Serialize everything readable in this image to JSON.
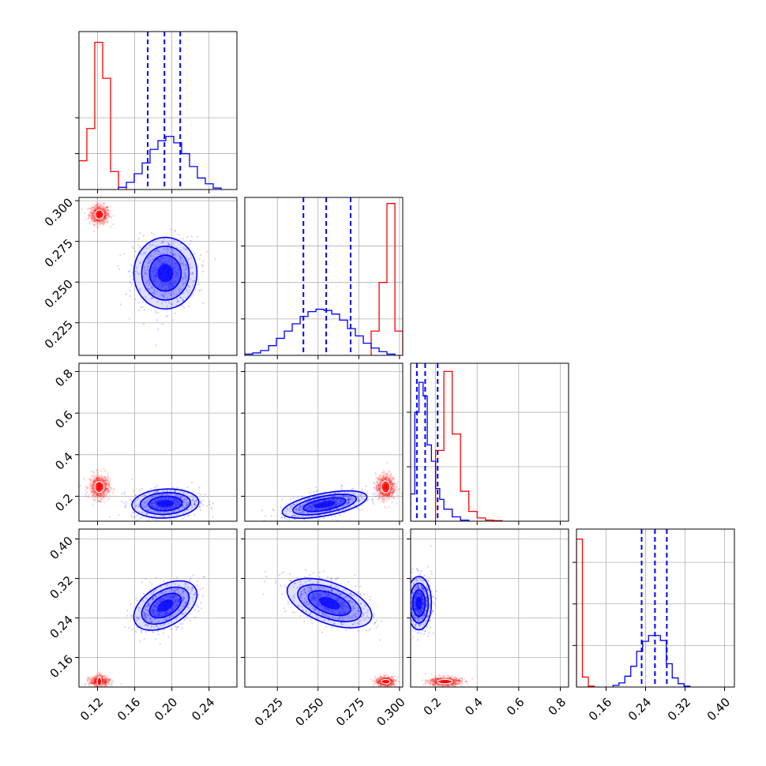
{
  "chart_data": {
    "type": "corner",
    "n_params": 4,
    "series": [
      {
        "name": "red",
        "color": "#ff0000"
      },
      {
        "name": "blue",
        "color": "#0000ff"
      }
    ],
    "params": [
      {
        "index": 0,
        "range": [
          0.1,
          0.27
        ],
        "ticks": [
          0.12,
          0.16,
          0.2,
          0.24
        ],
        "tick_labels": [
          "0.12",
          "0.16",
          "0.20",
          "0.24"
        ]
      },
      {
        "index": 1,
        "range": [
          0.205,
          0.302
        ],
        "ticks": [
          0.225,
          0.25,
          0.275,
          0.3
        ],
        "tick_labels": [
          "0.225",
          "0.250",
          "0.275",
          "0.300"
        ]
      },
      {
        "index": 2,
        "range": [
          0.08,
          0.84
        ],
        "ticks": [
          0.2,
          0.4,
          0.6,
          0.8
        ],
        "tick_labels": [
          "0.2",
          "0.4",
          "0.6",
          "0.8"
        ]
      },
      {
        "index": 3,
        "range": [
          0.1,
          0.42
        ],
        "ticks": [
          0.16,
          0.24,
          0.32,
          0.4
        ],
        "tick_labels": [
          "0.16",
          "0.24",
          "0.32",
          "0.40"
        ]
      }
    ],
    "diag_ymax": [
      0.22,
      0.13,
      0.29,
      0.19
    ],
    "diag_yticks": [
      [
        0.05,
        0.1
      ],
      [
        0.03,
        0.06,
        0.09
      ],
      [
        0.1,
        0.2
      ],
      [
        0.05,
        0.1,
        0.15
      ]
    ],
    "quantiles": [
      [
        0.174,
        0.192,
        0.209
      ],
      [
        0.241,
        0.255,
        0.27
      ],
      [
        0.11,
        0.15,
        0.21
      ],
      [
        0.232,
        0.259,
        0.283
      ]
    ],
    "histograms": {
      "red": [
        {
          "edges": [
            0.1,
            0.1085,
            0.117,
            0.1255,
            0.134,
            0.1425,
            0.151
          ],
          "counts": [
            0.04,
            0.085,
            0.205,
            0.155,
            0.025,
            0.003
          ]
        },
        {
          "edges": [
            0.2826,
            0.2875,
            0.2923,
            0.2972,
            0.302
          ],
          "counts": [
            0.02,
            0.06,
            0.125,
            0.02
          ]
        },
        {
          "edges": [
            0.2,
            0.24,
            0.28,
            0.32,
            0.36,
            0.4,
            0.44,
            0.48,
            0.52
          ],
          "counts": [
            0.13,
            0.275,
            0.16,
            0.055,
            0.018,
            0.006,
            0.002,
            0.001
          ]
        },
        {
          "edges": [
            0.1,
            0.112,
            0.124,
            0.136
          ],
          "counts": [
            0.178,
            0.012,
            0.001
          ]
        }
      ],
      "blue": [
        {
          "edges": [
            0.1425,
            0.151,
            0.1595,
            0.168,
            0.1765,
            0.185,
            0.1935,
            0.202,
            0.2105,
            0.219,
            0.2275,
            0.236,
            0.2445,
            0.253
          ],
          "counts": [
            0.003,
            0.01,
            0.022,
            0.037,
            0.056,
            0.068,
            0.074,
            0.065,
            0.05,
            0.032,
            0.016,
            0.008,
            0.002
          ]
        },
        {
          "edges": [
            0.205,
            0.2099,
            0.2147,
            0.2196,
            0.2244,
            0.2293,
            0.2341,
            0.239,
            0.2438,
            0.2487,
            0.2535,
            0.2584,
            0.2632,
            0.2681,
            0.2729,
            0.2778,
            0.2826,
            0.2875,
            0.2923,
            0.2972
          ],
          "counts": [
            0.001,
            0.002,
            0.004,
            0.008,
            0.014,
            0.02,
            0.026,
            0.032,
            0.036,
            0.038,
            0.037,
            0.034,
            0.029,
            0.022,
            0.016,
            0.01,
            0.006,
            0.003,
            0.001
          ]
        },
        {
          "edges": [
            0.08,
            0.1,
            0.12,
            0.14,
            0.16,
            0.18,
            0.2,
            0.22,
            0.24,
            0.28,
            0.32,
            0.36
          ],
          "counts": [
            0.05,
            0.2,
            0.255,
            0.23,
            0.14,
            0.11,
            0.06,
            0.04,
            0.022,
            0.008,
            0.002
          ]
        },
        {
          "edges": [
            0.174,
            0.186,
            0.198,
            0.21,
            0.222,
            0.234,
            0.246,
            0.258,
            0.27,
            0.282,
            0.294,
            0.306,
            0.318,
            0.33
          ],
          "counts": [
            0.002,
            0.005,
            0.013,
            0.025,
            0.043,
            0.055,
            0.062,
            0.062,
            0.056,
            0.028,
            0.011,
            0.004,
            0.001
          ]
        }
      ]
    },
    "blobs": [
      {
        "series": "red",
        "pair": [
          0,
          1
        ],
        "mean": [
          0.122,
          0.2915
        ],
        "sd": [
          0.0055,
          0.003
        ],
        "rho": 0.0
      },
      {
        "series": "blue",
        "pair": [
          0,
          1
        ],
        "mean": [
          0.193,
          0.2555
        ],
        "sd": [
          0.017,
          0.011
        ],
        "rho": 0.0
      },
      {
        "series": "red",
        "pair": [
          0,
          2
        ],
        "mean": [
          0.122,
          0.245
        ],
        "sd": [
          0.0055,
          0.03
        ],
        "rho": 0.0
      },
      {
        "series": "blue",
        "pair": [
          0,
          2
        ],
        "mean": [
          0.193,
          0.165
        ],
        "sd": [
          0.018,
          0.035
        ],
        "rho": 0.1
      },
      {
        "series": "red",
        "pair": [
          1,
          2
        ],
        "mean": [
          0.2915,
          0.245
        ],
        "sd": [
          0.003,
          0.032
        ],
        "rho": 0.0
      },
      {
        "series": "blue",
        "pair": [
          1,
          2
        ],
        "mean": [
          0.254,
          0.16
        ],
        "sd": [
          0.013,
          0.033
        ],
        "rho": 0.55
      },
      {
        "series": "red",
        "pair": [
          0,
          3
        ],
        "mean": [
          0.122,
          0.111
        ],
        "sd": [
          0.0055,
          0.005
        ],
        "rho": 0.0
      },
      {
        "series": "blue",
        "pair": [
          0,
          3
        ],
        "mean": [
          0.193,
          0.265
        ],
        "sd": [
          0.017,
          0.025
        ],
        "rho": 0.45
      },
      {
        "series": "red",
        "pair": [
          1,
          3
        ],
        "mean": [
          0.2915,
          0.111
        ],
        "sd": [
          0.003,
          0.005
        ],
        "rho": 0.0
      },
      {
        "series": "blue",
        "pair": [
          1,
          3
        ],
        "mean": [
          0.257,
          0.27
        ],
        "sd": [
          0.013,
          0.025
        ],
        "rho": -0.5
      },
      {
        "series": "red",
        "pair": [
          2,
          3
        ],
        "mean": [
          0.245,
          0.111
        ],
        "sd": [
          0.04,
          0.005
        ],
        "rho": 0.0
      },
      {
        "series": "blue",
        "pair": [
          2,
          3
        ],
        "mean": [
          0.12,
          0.27
        ],
        "sd": [
          0.03,
          0.027
        ],
        "rho": 0.0
      }
    ]
  }
}
